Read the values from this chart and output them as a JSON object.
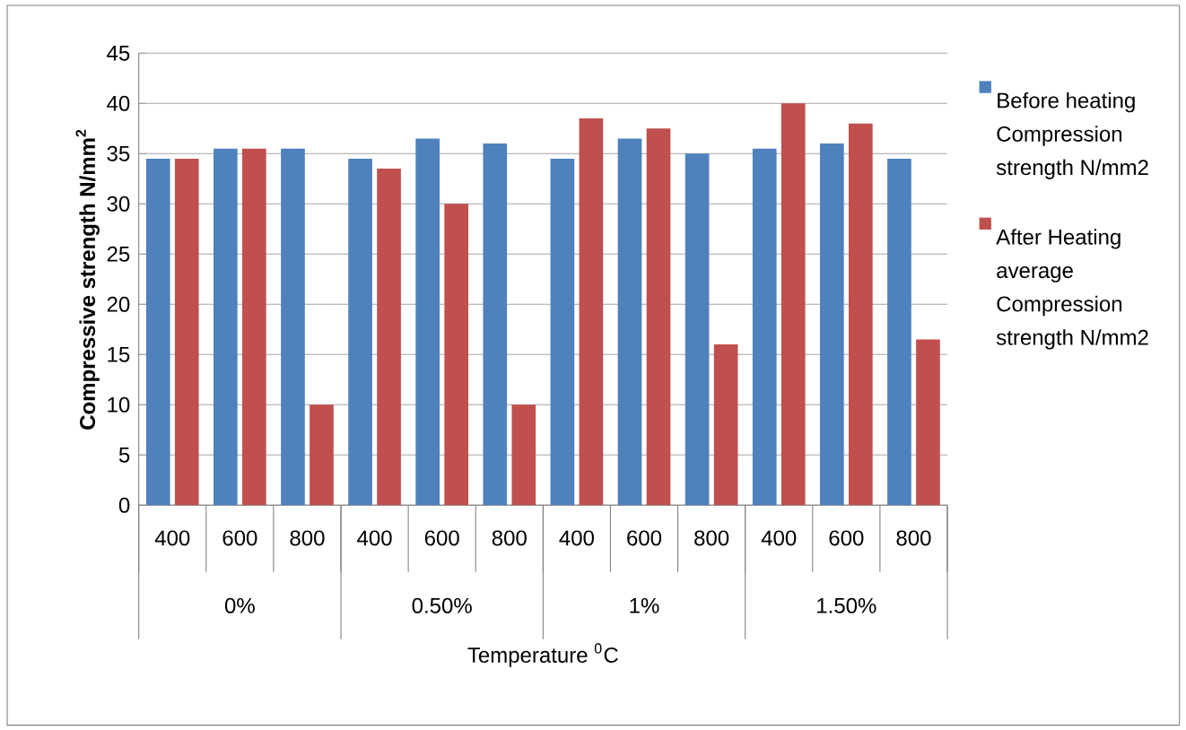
{
  "chart_data": {
    "type": "bar",
    "ylabel": "Compressive strength N/mm$^{2}$",
    "xlabel": "Temperature $^{0}$C",
    "categories": [
      "400",
      "600",
      "800",
      "400",
      "600",
      "800",
      "400",
      "600",
      "800",
      "400",
      "600",
      "800"
    ],
    "annotations": [
      "0%",
      "0.50%",
      "1%",
      "1.50%"
    ],
    "series": [
      {
        "name": "Before heating Compression strength N/mm2",
        "color": "#4f81bd",
        "values": [
          34.5,
          35.5,
          35.5,
          34.5,
          36.5,
          36,
          34.5,
          36.5,
          35,
          35.5,
          36,
          34.5
        ]
      },
      {
        "name": "After Heating average Compression strength N/mm2",
        "color": "#c0504d",
        "values": [
          34.5,
          35.5,
          10,
          33.5,
          30,
          10,
          38.5,
          37.5,
          16,
          40,
          38,
          16.5
        ]
      }
    ],
    "ylim": [
      0,
      45
    ],
    "yticks": [
      0,
      5,
      10,
      15,
      20,
      25,
      30,
      35,
      40,
      45
    ],
    "grid": "y",
    "legend": "right"
  }
}
